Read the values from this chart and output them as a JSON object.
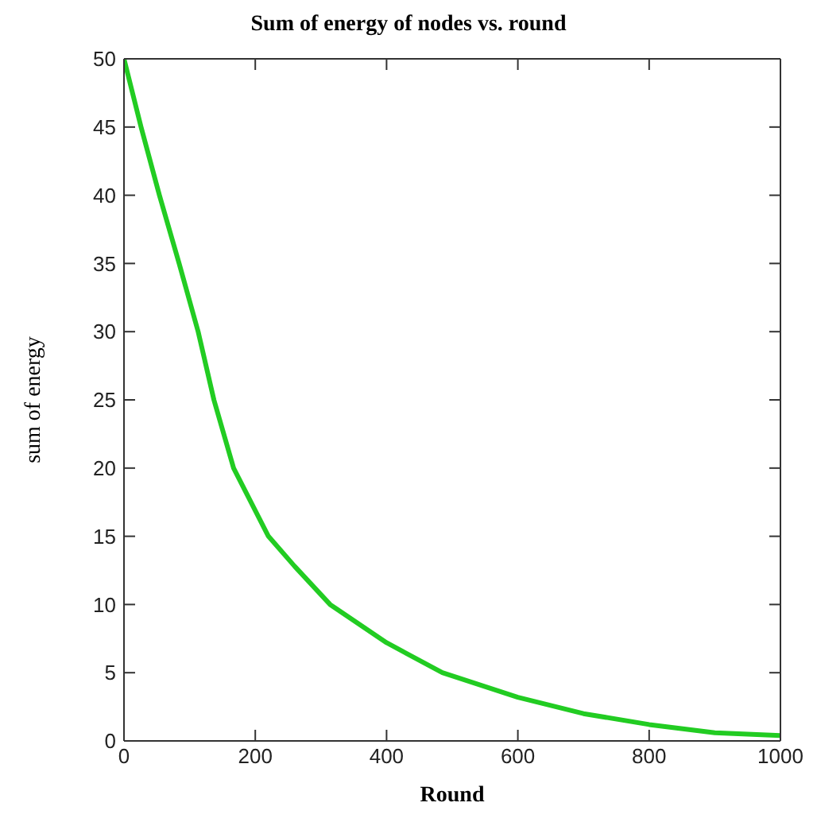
{
  "chart_data": {
    "type": "line",
    "title": "Sum of energy of nodes vs. round",
    "xlabel": "Round",
    "ylabel": "sum of energy",
    "x": [
      0,
      26,
      54,
      84,
      113,
      137,
      167,
      220,
      260,
      314,
      400,
      485,
      600,
      700,
      800,
      900,
      1000
    ],
    "series": [
      {
        "color": "#22cc22",
        "values": [
          50,
          45,
          40,
          35,
          30,
          25,
          20,
          15,
          12.8,
          10,
          7.2,
          5,
          3.2,
          2.0,
          1.2,
          0.6,
          0.4
        ]
      }
    ],
    "xlim": [
      0,
      1000
    ],
    "xticks": [
      0,
      200,
      400,
      600,
      800,
      1000
    ],
    "ylim": [
      0,
      50
    ],
    "yticks": [
      0,
      5,
      10,
      15,
      20,
      25,
      30,
      35,
      40,
      45,
      50
    ],
    "grid": false,
    "marker": "none",
    "line_style": "solid"
  }
}
